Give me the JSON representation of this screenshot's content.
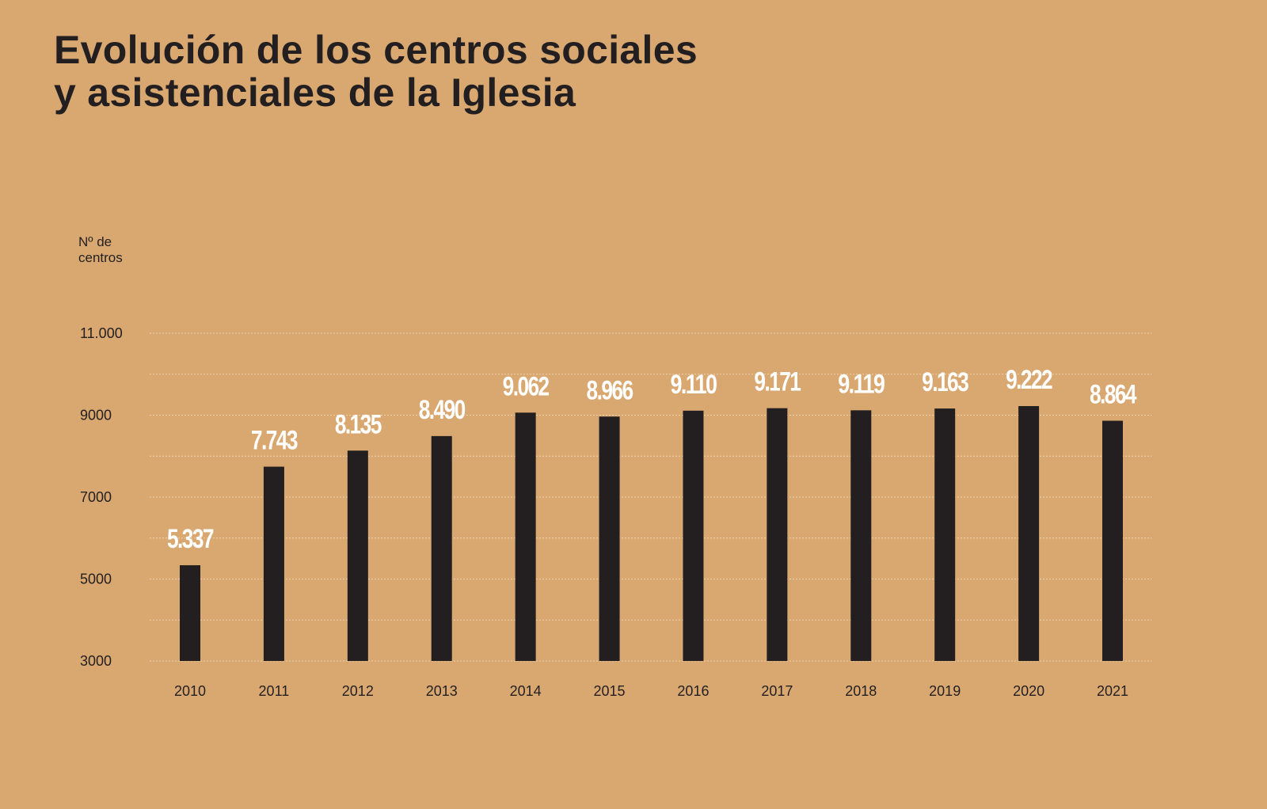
{
  "chart_data": {
    "type": "bar",
    "title_line1": "Evolución de los centros sociales",
    "title_line2": "y asistenciales de la Iglesia",
    "ylabel_line1": "Nº de",
    "ylabel_line2": "centros",
    "xlabel": "",
    "categories": [
      "2010",
      "2011",
      "2012",
      "2013",
      "2014",
      "2015",
      "2016",
      "2017",
      "2018",
      "2019",
      "2020",
      "2021"
    ],
    "values": [
      5337,
      7743,
      8135,
      8490,
      9062,
      8966,
      9110,
      9171,
      9119,
      9163,
      9222,
      8864
    ],
    "value_labels": [
      "5.337",
      "7.743",
      "8.135",
      "8.490",
      "9.062",
      "8.966",
      "9.110",
      "9.171",
      "9.119",
      "9.163",
      "9.222",
      "8.864"
    ],
    "ylim": [
      3000,
      11000
    ],
    "yticks": [
      3000,
      5000,
      7000,
      9000,
      11000
    ],
    "ytick_labels": [
      "3000",
      "5000",
      "7000",
      "9000",
      "11.000"
    ],
    "grid": true,
    "grid_step": 1000,
    "legend": "none",
    "colors": {
      "background": "#d9a871",
      "bar": "#231f20",
      "value_label": "#ffffff",
      "grid": "#ecd2b0"
    }
  }
}
